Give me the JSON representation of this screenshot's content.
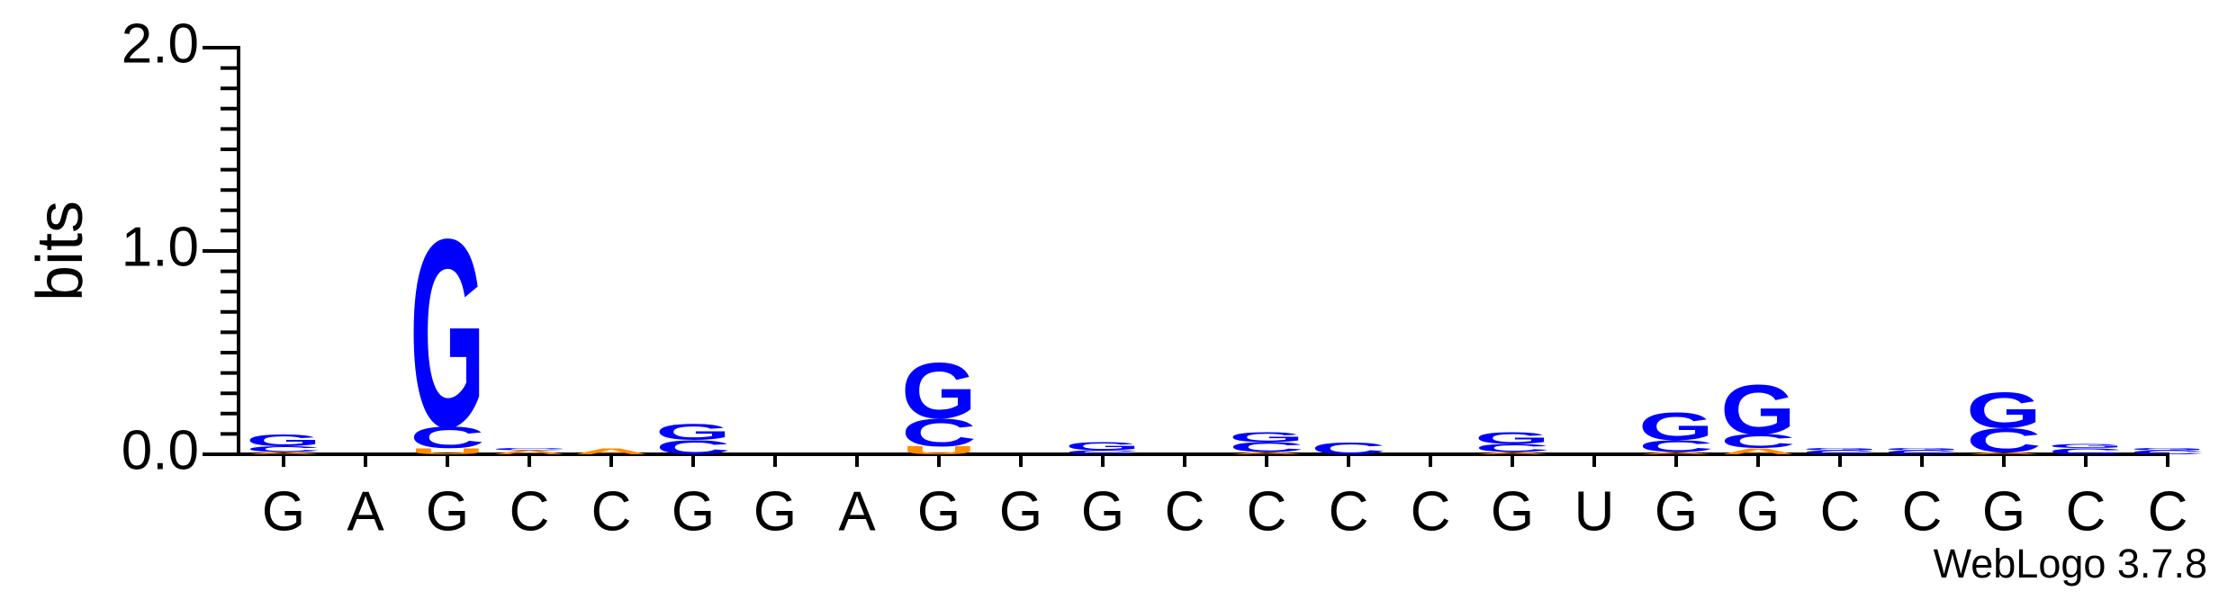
{
  "chart_data": {
    "type": "sequence_logo",
    "y_label": "bits",
    "footer": "WebLogo 3.7.8",
    "categories": [
      "G",
      "A",
      "G",
      "C",
      "C",
      "G",
      "G",
      "A",
      "G",
      "G",
      "G",
      "C",
      "C",
      "C",
      "C",
      "G",
      "U",
      "G",
      "G",
      "C",
      "C",
      "G",
      "C",
      "C"
    ],
    "ylim": [
      0,
      2
    ],
    "yticks": [
      {
        "value": 0,
        "label": "0.0"
      },
      {
        "value": 1,
        "label": "1.0"
      },
      {
        "value": 2,
        "label": "2.0"
      }
    ],
    "yminorticks": [
      0.1,
      0.2,
      0.3,
      0.4,
      0.5,
      0.6,
      0.7,
      0.8,
      0.9,
      1.1,
      1.2,
      1.3,
      1.4,
      1.5,
      1.6,
      1.7,
      1.8,
      1.9
    ],
    "series": [
      {
        "name": "A",
        "color": "#ff8c00",
        "values": [
          0.01,
          0,
          0,
          0.02,
          0.03,
          0,
          0,
          0,
          0,
          0,
          0,
          0,
          0.01,
          0,
          0,
          0.01,
          0,
          0.01,
          0.03,
          0,
          0,
          0.01,
          0,
          0
        ]
      },
      {
        "name": "U",
        "color": "#ff8c00",
        "values": [
          0,
          0,
          0.03,
          0,
          0,
          0,
          0,
          0,
          0.04,
          0,
          0,
          0,
          0,
          0,
          0,
          0,
          0,
          0,
          0,
          0,
          0,
          0,
          0,
          0
        ]
      },
      {
        "name": "C",
        "color": "#0000ff",
        "values": [
          0.03,
          0,
          0.11,
          0.01,
          0,
          0.07,
          0,
          0,
          0.14,
          0,
          0.02,
          0,
          0.05,
          0.06,
          0,
          0.04,
          0,
          0.06,
          0.07,
          0.02,
          0.02,
          0.12,
          0.03,
          0.02
        ]
      },
      {
        "name": "G",
        "color": "#0000ff",
        "values": [
          0.06,
          0,
          0.95,
          0,
          0,
          0.08,
          0,
          0,
          0.28,
          0,
          0.04,
          0,
          0.05,
          0,
          0,
          0.06,
          0,
          0.14,
          0.25,
          0.01,
          0.01,
          0.18,
          0.02,
          0.01
        ]
      }
    ]
  }
}
